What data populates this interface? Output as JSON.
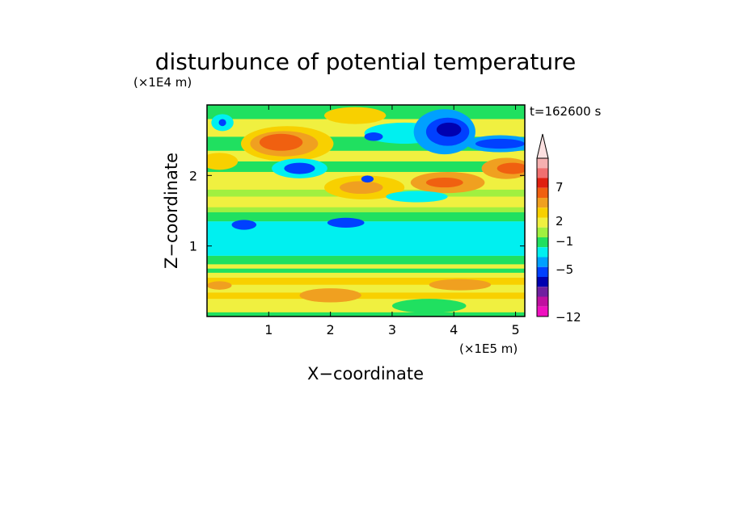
{
  "chart_data": {
    "type": "heatmap",
    "title": "disturbunce of potential temperature",
    "time_label": "t=162600 s",
    "xlabel": "X−coordinate",
    "ylabel": "Z−coordinate",
    "x_unit": "(×1E5 m)",
    "y_unit": "(×1E4 m)",
    "xlim": [
      0,
      5.15
    ],
    "ylim": [
      0,
      3.0
    ],
    "x_ticks": [
      1,
      2,
      3,
      4,
      5
    ],
    "x_tick_labels": [
      "1",
      "2",
      "3",
      "4",
      "5"
    ],
    "y_ticks": [
      1,
      2
    ],
    "y_tick_labels": [
      "1",
      "2"
    ],
    "colorbar": {
      "labels": [
        {
          "value": 7,
          "text": "7"
        },
        {
          "value": 2,
          "text": "2"
        },
        {
          "value": -1,
          "text": "−1"
        },
        {
          "value": -5,
          "text": "−5"
        },
        {
          "value": -12,
          "text": "−12"
        }
      ],
      "colors_top_to_bottom": [
        "#f5b0b0",
        "#f07070",
        "#e02010",
        "#f06010",
        "#f0a020",
        "#f8d000",
        "#f0f040",
        "#a0f040",
        "#20e060",
        "#00f0f0",
        "#00a0ff",
        "#0040ff",
        "#0000b0",
        "#7020a0",
        "#c010a0",
        "#f010c0"
      ],
      "extend_top_color": "#fce0e0"
    },
    "background_color": "#f0f040",
    "bands": [
      {
        "z0": 0.0,
        "z1": 0.06,
        "color": "#20e060"
      },
      {
        "z0": 0.06,
        "z1": 0.25,
        "color": "#f0f040"
      },
      {
        "z0": 0.25,
        "z1": 0.34,
        "color": "#f8d000"
      },
      {
        "z0": 0.34,
        "z1": 0.45,
        "color": "#f0f040"
      },
      {
        "z0": 0.45,
        "z1": 0.55,
        "color": "#f8d000"
      },
      {
        "z0": 0.55,
        "z1": 0.62,
        "color": "#f0f040"
      },
      {
        "z0": 0.62,
        "z1": 0.68,
        "color": "#20e060"
      },
      {
        "z0": 0.68,
        "z1": 0.74,
        "color": "#f0f040"
      },
      {
        "z0": 0.74,
        "z1": 0.86,
        "color": "#20e060"
      },
      {
        "z0": 0.86,
        "z1": 1.35,
        "color": "#00f0f0"
      },
      {
        "z0": 1.35,
        "z1": 1.48,
        "color": "#20e060"
      },
      {
        "z0": 1.48,
        "z1": 1.55,
        "color": "#a0f040"
      },
      {
        "z0": 1.55,
        "z1": 1.7,
        "color": "#f0f040"
      },
      {
        "z0": 1.7,
        "z1": 1.8,
        "color": "#a0f040"
      },
      {
        "z0": 1.8,
        "z1": 2.05,
        "color": "#f0f040"
      },
      {
        "z0": 2.05,
        "z1": 2.2,
        "color": "#20e060"
      },
      {
        "z0": 2.2,
        "z1": 2.35,
        "color": "#f0f040"
      },
      {
        "z0": 2.35,
        "z1": 2.55,
        "color": "#20e060"
      },
      {
        "z0": 2.55,
        "z1": 2.8,
        "color": "#f0f040"
      },
      {
        "z0": 2.8,
        "z1": 3.0,
        "color": "#20e060"
      }
    ],
    "blobs": [
      {
        "x": 1.3,
        "z": 2.45,
        "rx": 0.75,
        "rz": 0.25,
        "color": "#f8d000"
      },
      {
        "x": 1.25,
        "z": 2.45,
        "rx": 0.55,
        "rz": 0.18,
        "color": "#f0a020"
      },
      {
        "x": 1.2,
        "z": 2.47,
        "rx": 0.35,
        "rz": 0.12,
        "color": "#f06010"
      },
      {
        "x": 0.2,
        "z": 2.2,
        "rx": 0.3,
        "rz": 0.12,
        "color": "#f8d000"
      },
      {
        "x": 0.25,
        "z": 2.75,
        "rx": 0.18,
        "rz": 0.12,
        "color": "#00f0f0"
      },
      {
        "x": 0.25,
        "z": 2.75,
        "rx": 0.06,
        "rz": 0.05,
        "color": "#0040ff"
      },
      {
        "x": 1.5,
        "z": 2.1,
        "rx": 0.45,
        "rz": 0.14,
        "color": "#00f0f0"
      },
      {
        "x": 1.5,
        "z": 2.1,
        "rx": 0.25,
        "rz": 0.08,
        "color": "#0040ff"
      },
      {
        "x": 2.55,
        "z": 1.83,
        "rx": 0.65,
        "rz": 0.17,
        "color": "#f8d000"
      },
      {
        "x": 2.5,
        "z": 1.83,
        "rx": 0.35,
        "rz": 0.09,
        "color": "#f0a020"
      },
      {
        "x": 3.2,
        "z": 2.6,
        "rx": 0.65,
        "rz": 0.15,
        "color": "#00f0f0"
      },
      {
        "x": 2.7,
        "z": 2.55,
        "rx": 0.15,
        "rz": 0.06,
        "color": "#0040ff"
      },
      {
        "x": 2.4,
        "z": 2.85,
        "rx": 0.5,
        "rz": 0.12,
        "color": "#f8d000"
      },
      {
        "x": 3.85,
        "z": 2.62,
        "rx": 0.5,
        "rz": 0.32,
        "color": "#00a0ff"
      },
      {
        "x": 3.9,
        "z": 2.62,
        "rx": 0.35,
        "rz": 0.2,
        "color": "#0040ff"
      },
      {
        "x": 3.92,
        "z": 2.65,
        "rx": 0.2,
        "rz": 0.1,
        "color": "#0000b0"
      },
      {
        "x": 4.75,
        "z": 2.45,
        "rx": 0.55,
        "rz": 0.12,
        "color": "#00a0ff"
      },
      {
        "x": 4.75,
        "z": 2.45,
        "rx": 0.4,
        "rz": 0.07,
        "color": "#0040ff"
      },
      {
        "x": 3.9,
        "z": 1.9,
        "rx": 0.6,
        "rz": 0.15,
        "color": "#f0a020"
      },
      {
        "x": 3.85,
        "z": 1.9,
        "rx": 0.3,
        "rz": 0.07,
        "color": "#f06010"
      },
      {
        "x": 4.85,
        "z": 2.1,
        "rx": 0.4,
        "rz": 0.15,
        "color": "#f0a020"
      },
      {
        "x": 4.95,
        "z": 2.1,
        "rx": 0.25,
        "rz": 0.08,
        "color": "#f06010"
      },
      {
        "x": 0.6,
        "z": 1.3,
        "rx": 0.2,
        "rz": 0.07,
        "color": "#0040ff"
      },
      {
        "x": 2.25,
        "z": 1.33,
        "rx": 0.3,
        "rz": 0.07,
        "color": "#0040ff"
      },
      {
        "x": 3.4,
        "z": 1.7,
        "rx": 0.5,
        "rz": 0.08,
        "color": "#00f0f0"
      },
      {
        "x": 2.6,
        "z": 1.95,
        "rx": 0.1,
        "rz": 0.05,
        "color": "#0040ff"
      },
      {
        "x": 0.2,
        "z": 0.44,
        "rx": 0.2,
        "rz": 0.06,
        "color": "#f0a020"
      },
      {
        "x": 2.0,
        "z": 0.3,
        "rx": 0.5,
        "rz": 0.1,
        "color": "#f0a020"
      },
      {
        "x": 4.1,
        "z": 0.45,
        "rx": 0.5,
        "rz": 0.08,
        "color": "#f0a020"
      },
      {
        "x": 3.6,
        "z": 0.15,
        "rx": 0.6,
        "rz": 0.1,
        "color": "#20e060"
      }
    ]
  }
}
